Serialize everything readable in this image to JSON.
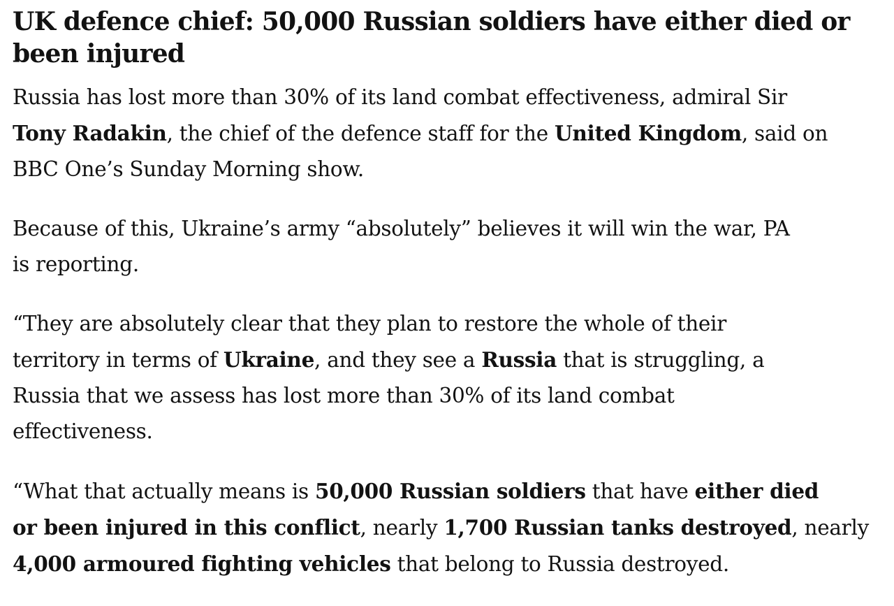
{
  "article": {
    "headline_lines": [
      "UK defence chief: 50,000 Russian soldiers have either died or",
      "been injured"
    ],
    "paragraphs": [
      [
        [
          {
            "t": "Russia has lost more than 30% of its land combat effectiveness, admiral Sir",
            "b": false
          }
        ],
        [
          {
            "t": "Tony Radakin",
            "b": true
          },
          {
            "t": ", the chief of the defence staff for the ",
            "b": false
          },
          {
            "t": "United Kingdom",
            "b": true
          },
          {
            "t": ", said on",
            "b": false
          }
        ],
        [
          {
            "t": "BBC One’s Sunday Morning show.",
            "b": false
          }
        ]
      ],
      [
        [
          {
            "t": "Because of this, Ukraine’s army “absolutely” believes it will win the war, PA",
            "b": false
          }
        ],
        [
          {
            "t": "is reporting.",
            "b": false
          }
        ]
      ],
      [
        [
          {
            "t": "“They are absolutely clear that they plan to restore the whole of their",
            "b": false
          }
        ],
        [
          {
            "t": "territory in terms of ",
            "b": false
          },
          {
            "t": "Ukraine",
            "b": true
          },
          {
            "t": ", and they see a ",
            "b": false
          },
          {
            "t": "Russia",
            "b": true
          },
          {
            "t": " that is struggling, a",
            "b": false
          }
        ],
        [
          {
            "t": "Russia that we assess has lost more than 30% of its land combat",
            "b": false
          }
        ],
        [
          {
            "t": "effectiveness.",
            "b": false
          }
        ]
      ],
      [
        [
          {
            "t": "“What that actually means is ",
            "b": false
          },
          {
            "t": "50,000 Russian soldiers",
            "b": true
          },
          {
            "t": " that have ",
            "b": false
          },
          {
            "t": "either died",
            "b": true
          }
        ],
        [
          {
            "t": "or been injured in this conflict",
            "b": true
          },
          {
            "t": ", nearly ",
            "b": false
          },
          {
            "t": "1,700 Russian tanks destroyed",
            "b": true
          },
          {
            "t": ", nearly",
            "b": false
          }
        ],
        [
          {
            "t": "4,000 armoured fighting vehicles",
            "b": true
          },
          {
            "t": " that belong to Russia destroyed.",
            "b": false
          }
        ]
      ]
    ]
  }
}
